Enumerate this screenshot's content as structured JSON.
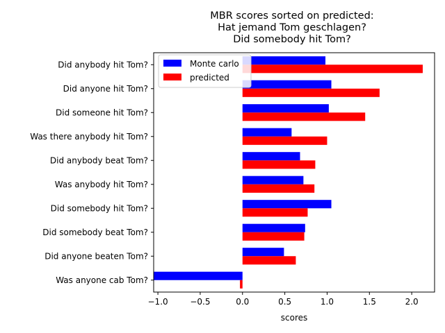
{
  "chart_data": {
    "type": "bar",
    "orientation": "horizontal",
    "title_lines": [
      "MBR scores sorted on predicted:",
      "Hat jemand Tom geschlagen?",
      "Did somebody hit Tom?"
    ],
    "xlabel": "scores",
    "ylabel": "",
    "xlim": [
      -1.05,
      2.27
    ],
    "x_ticks": [
      -1.0,
      -0.5,
      0.0,
      0.5,
      1.0,
      1.5,
      2.0
    ],
    "x_tick_labels": [
      "−1.0",
      "−0.5",
      "0.0",
      "0.5",
      "1.0",
      "1.5",
      "2.0"
    ],
    "grid": false,
    "legend_position": "top-left",
    "categories": [
      "Did anybody hit Tom?",
      "Did anyone hit Tom?",
      "Did someone hit Tom?",
      "Was there anybody hit Tom?",
      "Did anybody beat Tom?",
      "Was anybody hit Tom?",
      "Did somebody hit Tom?",
      "Did somebody beat Tom?",
      "Did anyone beaten Tom?",
      "Was anyone cab Tom?"
    ],
    "series": [
      {
        "name": "Monte carlo",
        "color": "#0000ff",
        "values": [
          0.98,
          1.05,
          1.02,
          0.58,
          0.68,
          0.72,
          1.05,
          0.74,
          0.49,
          -1.05
        ]
      },
      {
        "name": "predicted",
        "color": "#ff0000",
        "values": [
          2.13,
          1.62,
          1.45,
          1.0,
          0.86,
          0.85,
          0.77,
          0.73,
          0.63,
          -0.03
        ]
      }
    ]
  }
}
